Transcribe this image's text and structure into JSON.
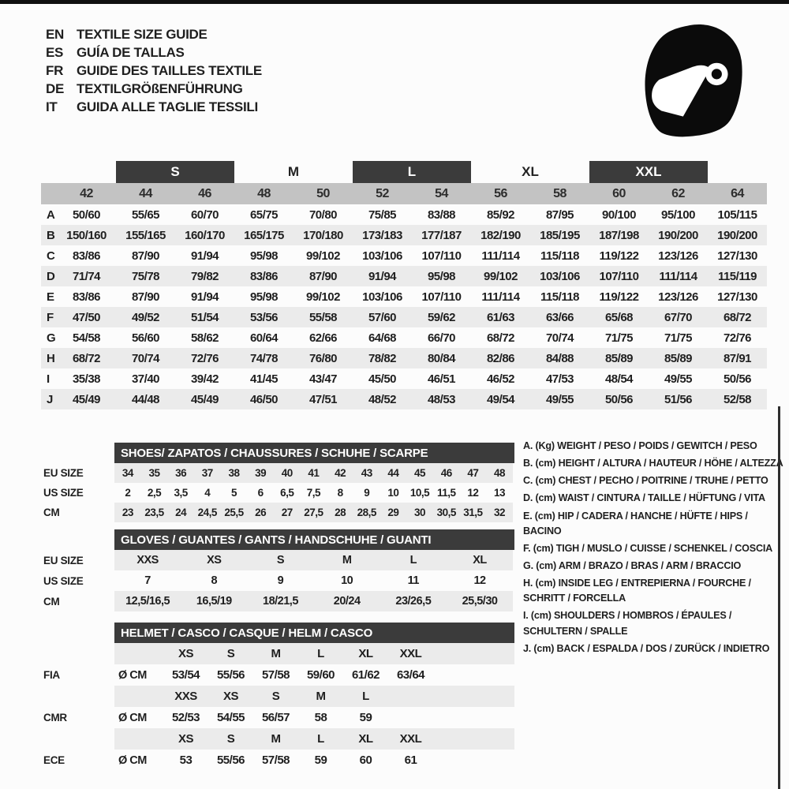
{
  "colors": {
    "dark_bar": "#3b3b3b",
    "band": "#c3c3c3",
    "stripe": "#ebebeb",
    "page": "#fcfcfc"
  },
  "header": {
    "languages": [
      {
        "code": "EN",
        "title": "TEXTILE SIZE GUIDE"
      },
      {
        "code": "ES",
        "title": "GUÍA DE TALLAS"
      },
      {
        "code": "FR",
        "title": "GUIDE DES TAILLES TEXTILE"
      },
      {
        "code": "DE",
        "title": "TEXTILGRÖßENFÜHRUNG"
      },
      {
        "code": "IT",
        "title": "GUIDA ALLE TAGLIE TESSILI"
      }
    ],
    "icon": "racing-helmet-icon"
  },
  "textile": {
    "groups": [
      {
        "label": "S",
        "dark": true
      },
      {
        "label": "M",
        "dark": false
      },
      {
        "label": "L",
        "dark": true
      },
      {
        "label": "XL",
        "dark": false
      },
      {
        "label": "XXL",
        "dark": true
      }
    ],
    "sizes": [
      "42",
      "44",
      "46",
      "48",
      "50",
      "52",
      "54",
      "56",
      "58",
      "60",
      "62",
      "64"
    ],
    "rows": [
      {
        "letter": "A",
        "values": [
          "50/60",
          "55/65",
          "60/70",
          "65/75",
          "70/80",
          "75/85",
          "83/88",
          "85/92",
          "87/95",
          "90/100",
          "95/100",
          "105/115"
        ]
      },
      {
        "letter": "B",
        "values": [
          "150/160",
          "155/165",
          "160/170",
          "165/175",
          "170/180",
          "173/183",
          "177/187",
          "182/190",
          "185/195",
          "187/198",
          "190/200",
          "190/200"
        ]
      },
      {
        "letter": "C",
        "values": [
          "83/86",
          "87/90",
          "91/94",
          "95/98",
          "99/102",
          "103/106",
          "107/110",
          "111/114",
          "115/118",
          "119/122",
          "123/126",
          "127/130"
        ]
      },
      {
        "letter": "D",
        "values": [
          "71/74",
          "75/78",
          "79/82",
          "83/86",
          "87/90",
          "91/94",
          "95/98",
          "99/102",
          "103/106",
          "107/110",
          "111/114",
          "115/119"
        ]
      },
      {
        "letter": "E",
        "values": [
          "83/86",
          "87/90",
          "91/94",
          "95/98",
          "99/102",
          "103/106",
          "107/110",
          "111/114",
          "115/118",
          "119/122",
          "123/126",
          "127/130"
        ]
      },
      {
        "letter": "F",
        "values": [
          "47/50",
          "49/52",
          "51/54",
          "53/56",
          "55/58",
          "57/60",
          "59/62",
          "61/63",
          "63/66",
          "65/68",
          "67/70",
          "68/72"
        ]
      },
      {
        "letter": "G",
        "values": [
          "54/58",
          "56/60",
          "58/62",
          "60/64",
          "62/66",
          "64/68",
          "66/70",
          "68/72",
          "70/74",
          "71/75",
          "71/75",
          "72/76"
        ]
      },
      {
        "letter": "H",
        "values": [
          "68/72",
          "70/74",
          "72/76",
          "74/78",
          "76/80",
          "78/82",
          "80/84",
          "82/86",
          "84/88",
          "85/89",
          "85/89",
          "87/91"
        ]
      },
      {
        "letter": "I",
        "values": [
          "35/38",
          "37/40",
          "39/42",
          "41/45",
          "43/47",
          "45/50",
          "46/51",
          "46/52",
          "47/53",
          "48/54",
          "49/55",
          "50/56"
        ]
      },
      {
        "letter": "J",
        "values": [
          "45/49",
          "44/48",
          "45/49",
          "46/50",
          "47/51",
          "48/52",
          "48/53",
          "49/54",
          "49/55",
          "50/56",
          "51/56",
          "52/58"
        ]
      }
    ]
  },
  "shoes": {
    "title": "SHOES/ ZAPATOS / CHAUSSURES / SCHUHE / SCARPE",
    "rows": [
      {
        "label": "EU SIZE",
        "shaded": true,
        "values": [
          "34",
          "35",
          "36",
          "37",
          "38",
          "39",
          "40",
          "41",
          "42",
          "43",
          "44",
          "45",
          "46",
          "47",
          "48"
        ]
      },
      {
        "label": "US SIZE",
        "shaded": false,
        "values": [
          "2",
          "2,5",
          "3,5",
          "4",
          "5",
          "6",
          "6,5",
          "7,5",
          "8",
          "9",
          "10",
          "10,5",
          "11,5",
          "12",
          "13"
        ]
      },
      {
        "label": "CM",
        "shaded": true,
        "values": [
          "23",
          "23,5",
          "24",
          "24,5",
          "25,5",
          "26",
          "27",
          "27,5",
          "28",
          "28,5",
          "29",
          "30",
          "30,5",
          "31,5",
          "32"
        ]
      }
    ]
  },
  "gloves": {
    "title": "GLOVES / GUANTES / GANTS / HANDSCHUHE / GUANTI",
    "rows": [
      {
        "label": "EU SIZE",
        "shaded": true,
        "values": [
          "XXS",
          "XS",
          "S",
          "M",
          "L",
          "XL"
        ]
      },
      {
        "label": "US SIZE",
        "shaded": false,
        "values": [
          "7",
          "8",
          "9",
          "10",
          "11",
          "12"
        ]
      },
      {
        "label": "CM",
        "shaded": true,
        "values": [
          "12,5/16,5",
          "16,5/19",
          "18/21,5",
          "20/24",
          "23/26,5",
          "25,5/30"
        ]
      }
    ]
  },
  "helmet": {
    "title": "HELMET / CASCO / CASQUE / HELM / CASCO",
    "rows": [
      {
        "label": "",
        "shaded": true,
        "values": [
          "",
          "XS",
          "S",
          "M",
          "L",
          "XL",
          "XXL"
        ]
      },
      {
        "label": "FIA",
        "shaded": false,
        "values": [
          "Ø CM",
          "53/54",
          "55/56",
          "57/58",
          "59/60",
          "61/62",
          "63/64"
        ]
      },
      {
        "label": "",
        "shaded": true,
        "values": [
          "",
          "XXS",
          "XS",
          "S",
          "M",
          "L",
          ""
        ]
      },
      {
        "label": "CMR",
        "shaded": false,
        "values": [
          "Ø CM",
          "52/53",
          "54/55",
          "56/57",
          "58",
          "59",
          ""
        ]
      },
      {
        "label": "",
        "shaded": true,
        "values": [
          "",
          "XS",
          "S",
          "M",
          "L",
          "XL",
          "XXL"
        ]
      },
      {
        "label": "ECE",
        "shaded": false,
        "values": [
          "Ø CM",
          "53",
          "55/56",
          "57/58",
          "59",
          "60",
          "61"
        ]
      }
    ]
  },
  "legend": {
    "items": [
      "A. (Kg) WEIGHT / PESO / POIDS / GEWITCH / PESO",
      "B. (cm) HEIGHT / ALTURA / HAUTEUR / HÖHE / ALTEZZA",
      "C. (cm) CHEST / PECHO / POITRINE / TRUHE / PETTO",
      "D. (cm) WAIST / CINTURA / TAILLE / HÜFTUNG / VITA",
      "E. (cm) HIP / CADERA / HANCHE / HÜFTE / HIPS / BACINO",
      "F. (cm) TIGH / MUSLO / CUISSE / SCHENKEL / COSCIA",
      "G. (cm) ARM / BRAZO / BRAS / ARM / BRACCIO",
      "H. (cm) INSIDE LEG / ENTREPIERNA / FOURCHE / SCHRITT / FORCELLA",
      "I. (cm) SHOULDERS / HOMBROS / ÉPAULES / SCHULTERN / SPALLE",
      "J. (cm) BACK / ESPALDA / DOS / ZURÜCK / INDIETRO"
    ]
  }
}
